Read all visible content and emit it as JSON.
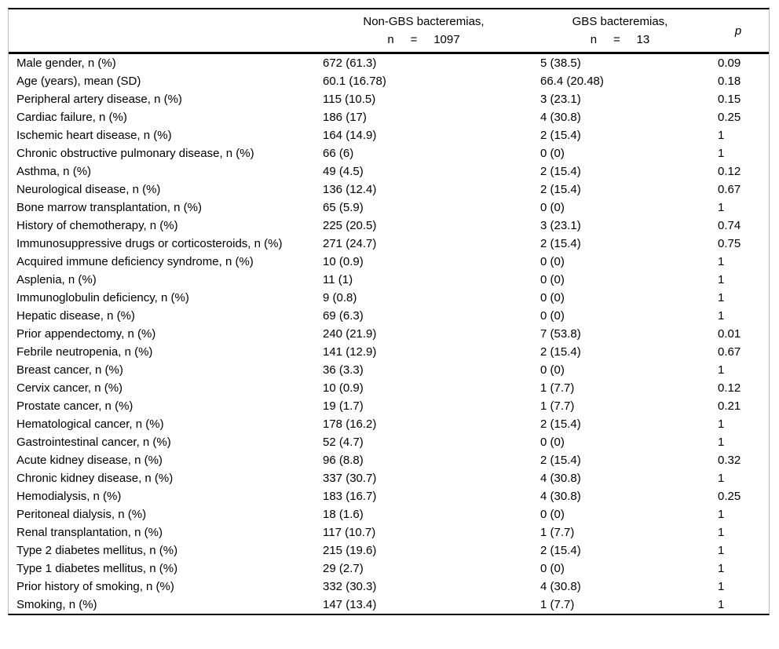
{
  "colors": {
    "rule": "#000000",
    "frame_border": "#bdbdbd",
    "text": "#000000",
    "background": "#ffffff"
  },
  "table": {
    "header": {
      "characteristic_label": "",
      "non_gbs": {
        "line1": "Non-GBS bacteremias,",
        "line2": "n     =     1097"
      },
      "gbs": {
        "line1": "GBS bacteremias,",
        "line2": "n     =     13"
      },
      "p_label": "p"
    },
    "rows": [
      {
        "characteristic": "Male gender, n (%)",
        "non_gbs": "672 (61.3)",
        "gbs": "5 (38.5)",
        "p": "0.09"
      },
      {
        "characteristic": "Age (years), mean (SD)",
        "non_gbs": "60.1 (16.78)",
        "gbs": "66.4 (20.48)",
        "p": "0.18"
      },
      {
        "characteristic": "Peripheral artery disease, n (%)",
        "non_gbs": "115 (10.5)",
        "gbs": "3 (23.1)",
        "p": "0.15"
      },
      {
        "characteristic": "Cardiac failure, n (%)",
        "non_gbs": "186 (17)",
        "gbs": "4 (30.8)",
        "p": "0.25"
      },
      {
        "characteristic": "Ischemic heart disease, n (%)",
        "non_gbs": "164 (14.9)",
        "gbs": "2 (15.4)",
        "p": "1"
      },
      {
        "characteristic": "Chronic obstructive pulmonary disease, n (%)",
        "non_gbs": "66 (6)",
        "gbs": "0 (0)",
        "p": "1"
      },
      {
        "characteristic": "Asthma, n (%)",
        "non_gbs": "49 (4.5)",
        "gbs": "2 (15.4)",
        "p": "0.12"
      },
      {
        "characteristic": "Neurological disease, n (%)",
        "non_gbs": "136 (12.4)",
        "gbs": "2 (15.4)",
        "p": "0.67"
      },
      {
        "characteristic": "Bone marrow transplantation, n (%)",
        "non_gbs": "65 (5.9)",
        "gbs": "0 (0)",
        "p": "1"
      },
      {
        "characteristic": "History of chemotherapy, n (%)",
        "non_gbs": "225 (20.5)",
        "gbs": "3 (23.1)",
        "p": "0.74"
      },
      {
        "characteristic": "Immunosuppressive drugs or corticosteroids, n (%)",
        "non_gbs": "271 (24.7)",
        "gbs": "2 (15.4)",
        "p": "0.75"
      },
      {
        "characteristic": "Acquired immune deficiency syndrome, n (%)",
        "non_gbs": "10 (0.9)",
        "gbs": "0 (0)",
        "p": "1"
      },
      {
        "characteristic": "Asplenia, n (%)",
        "non_gbs": "11 (1)",
        "gbs": "0 (0)",
        "p": "1"
      },
      {
        "characteristic": "Immunoglobulin deficiency, n (%)",
        "non_gbs": "9 (0.8)",
        "gbs": "0 (0)",
        "p": "1"
      },
      {
        "characteristic": "Hepatic disease, n (%)",
        "non_gbs": "69 (6.3)",
        "gbs": "0 (0)",
        "p": "1"
      },
      {
        "characteristic": "Prior appendectomy, n (%)",
        "non_gbs": "240 (21.9)",
        "gbs": "7 (53.8)",
        "p": "0.01"
      },
      {
        "characteristic": "Febrile neutropenia, n (%)",
        "non_gbs": "141 (12.9)",
        "gbs": "2 (15.4)",
        "p": "0.67"
      },
      {
        "characteristic": "Breast cancer, n (%)",
        "non_gbs": "36 (3.3)",
        "gbs": "0 (0)",
        "p": "1"
      },
      {
        "characteristic": "Cervix cancer, n (%)",
        "non_gbs": "10 (0.9)",
        "gbs": "1 (7.7)",
        "p": "0.12"
      },
      {
        "characteristic": "Prostate cancer, n (%)",
        "non_gbs": "19 (1.7)",
        "gbs": "1 (7.7)",
        "p": "0.21"
      },
      {
        "characteristic": "Hematological cancer, n (%)",
        "non_gbs": "178 (16.2)",
        "gbs": "2 (15.4)",
        "p": "1"
      },
      {
        "characteristic": "Gastrointestinal cancer, n (%)",
        "non_gbs": "52 (4.7)",
        "gbs": "0 (0)",
        "p": "1"
      },
      {
        "characteristic": "Acute kidney disease, n (%)",
        "non_gbs": "96 (8.8)",
        "gbs": "2 (15.4)",
        "p": "0.32"
      },
      {
        "characteristic": "Chronic kidney disease, n (%)",
        "non_gbs": "337 (30.7)",
        "gbs": "4 (30.8)",
        "p": "1"
      },
      {
        "characteristic": "Hemodialysis, n (%)",
        "non_gbs": "183 (16.7)",
        "gbs": "4 (30.8)",
        "p": "0.25"
      },
      {
        "characteristic": "Peritoneal dialysis, n (%)",
        "non_gbs": "18 (1.6)",
        "gbs": "0 (0)",
        "p": "1"
      },
      {
        "characteristic": "Renal transplantation, n (%)",
        "non_gbs": "117 (10.7)",
        "gbs": "1 (7.7)",
        "p": "1"
      },
      {
        "characteristic": "Type 2 diabetes mellitus, n (%)",
        "non_gbs": "215 (19.6)",
        "gbs": "2 (15.4)",
        "p": "1"
      },
      {
        "characteristic": "Type 1 diabetes mellitus, n (%)",
        "non_gbs": "29 (2.7)",
        "gbs": "0 (0)",
        "p": "1"
      },
      {
        "characteristic": "Prior history of smoking, n (%)",
        "non_gbs": "332 (30.3)",
        "gbs": "4 (30.8)",
        "p": "1"
      },
      {
        "characteristic": "Smoking, n (%)",
        "non_gbs": "147 (13.4)",
        "gbs": "1 (7.7)",
        "p": "1"
      }
    ]
  }
}
